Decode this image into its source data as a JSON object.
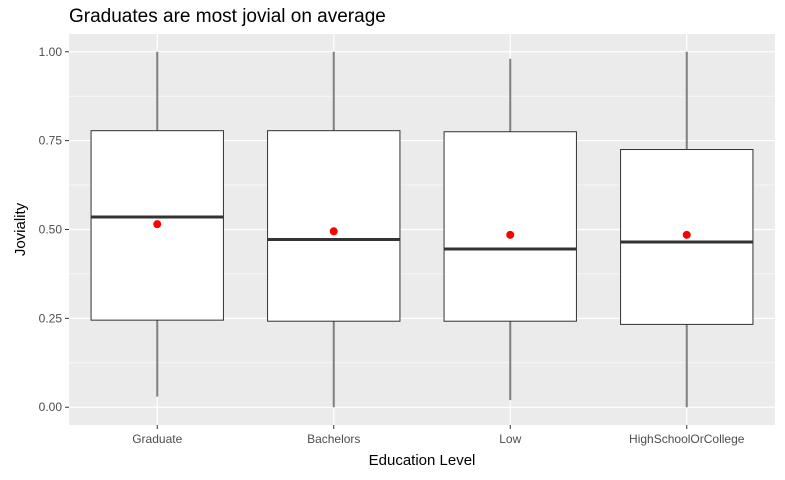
{
  "chart_data": {
    "type": "boxplot",
    "title": "Graduates are most jovial on average",
    "xlabel": "Education Level",
    "ylabel": "Joviality",
    "ylim": [
      -0.05,
      1.05
    ],
    "y_ticks": [
      0.0,
      0.25,
      0.5,
      0.75,
      1.0
    ],
    "y_tick_labels": [
      "0.00",
      "0.25",
      "0.50",
      "0.75",
      "1.00"
    ],
    "grid": true,
    "legend": "none",
    "categories": [
      "Graduate",
      "Bachelors",
      "Low",
      "HighSchoolOrCollege"
    ],
    "boxes": [
      {
        "min": 0.03,
        "q1": 0.245,
        "median": 0.535,
        "q3": 0.778,
        "max": 1.0,
        "mean": 0.515
      },
      {
        "min": 0.0,
        "q1": 0.242,
        "median": 0.472,
        "q3": 0.778,
        "max": 1.0,
        "mean": 0.495
      },
      {
        "min": 0.02,
        "q1": 0.242,
        "median": 0.445,
        "q3": 0.775,
        "max": 0.98,
        "mean": 0.485
      },
      {
        "min": 0.0,
        "q1": 0.233,
        "median": 0.465,
        "q3": 0.725,
        "max": 1.0,
        "mean": 0.485
      }
    ],
    "colors": {
      "panel": "#ebebeb",
      "grid_major": "#ffffff",
      "box_fill": "#ffffff",
      "box_stroke": "#333333",
      "whisker": "#7f7f7f",
      "mean_point": "#ff0000"
    }
  }
}
